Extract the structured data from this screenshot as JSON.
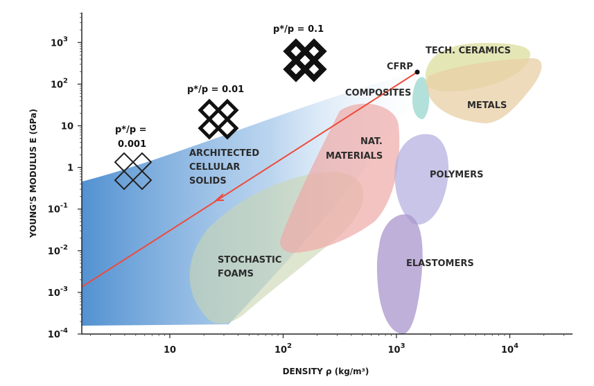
{
  "chart_data": {
    "type": "scatter",
    "title": "",
    "xlabel": "DENSITY ρ (kg/m³)",
    "ylabel": "YOUNG'S MODULUS E (GPa)",
    "x_scale": "log",
    "y_scale": "log",
    "xlim": [
      1.5,
      40000
    ],
    "ylim": [
      0.0001,
      3000
    ],
    "grid": false,
    "x_ticks": [
      {
        "value": 10,
        "base": "10",
        "exp": ""
      },
      {
        "value": 100,
        "base": "10",
        "exp": "2"
      },
      {
        "value": 1000,
        "base": "10",
        "exp": "3"
      },
      {
        "value": 10000,
        "base": "10",
        "exp": "4"
      }
    ],
    "y_ticks": [
      {
        "value": 0.0001,
        "base": "10",
        "exp": "-4"
      },
      {
        "value": 0.001,
        "base": "10",
        "exp": "-3"
      },
      {
        "value": 0.01,
        "base": "10",
        "exp": "-2"
      },
      {
        "value": 0.1,
        "base": "10",
        "exp": "-1"
      },
      {
        "value": 1,
        "base": "1",
        "exp": ""
      },
      {
        "value": 10,
        "base": "10",
        "exp": ""
      },
      {
        "value": 100,
        "base": "10",
        "exp": "2"
      },
      {
        "value": 1000,
        "base": "10",
        "exp": "3"
      }
    ],
    "regions": [
      {
        "label": "STOCHASTIC FOAMS",
        "color": "#c9d6b0"
      },
      {
        "label": "NAT. MATERIALS",
        "color": "#eeaaa6"
      },
      {
        "label": "COMPOSITES",
        "color": "#9fd8d2"
      },
      {
        "label": "POLYMERS",
        "color": "#b6b2e0"
      },
      {
        "label": "ELASTOMERS",
        "color": "#a996cc"
      },
      {
        "label": "TECH. CERAMICS",
        "color": "#dfe0a4"
      },
      {
        "label": "METALS",
        "color": "#e8cfa6"
      },
      {
        "label": "ARCHITECTED CELLULAR SOLIDS",
        "color": "#4f8fd0"
      }
    ],
    "annotations": [
      {
        "text": "CFRP",
        "x": 1600,
        "y": 180
      },
      {
        "text": "p*/p = 0.001",
        "x": 4.5,
        "y": 1.2
      },
      {
        "text": "p*/p = 0.01",
        "x": 27,
        "y": 13
      },
      {
        "text": "p*/p = 0.1",
        "x": 170,
        "y": 380
      }
    ],
    "line": {
      "color": "#ee4a3a",
      "from": [
        1600,
        180
      ],
      "to": [
        1.5,
        0.0013
      ]
    }
  }
}
